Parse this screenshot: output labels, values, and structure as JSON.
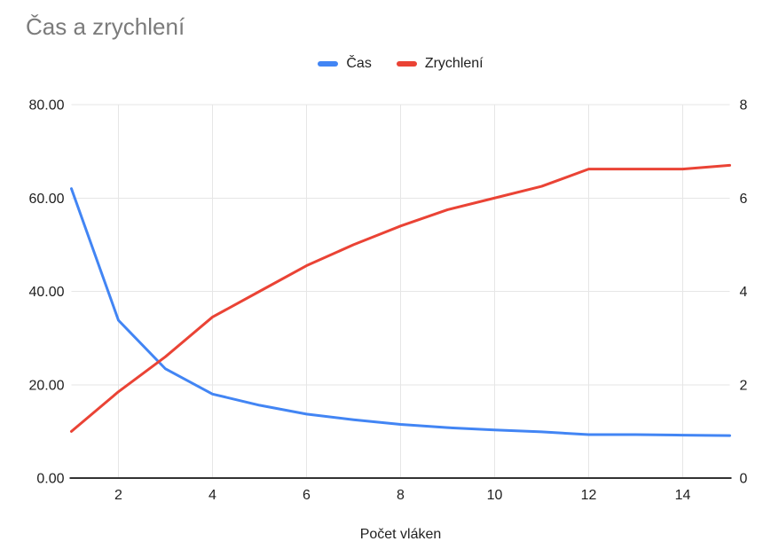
{
  "chart": {
    "title": "Čas a zrychlení",
    "x_axis_title": "Počet vláken"
  },
  "chart_data": {
    "type": "line",
    "title": "Čas a zrychlení",
    "xlabel": "Počet vláken",
    "ylabel_left": "",
    "ylabel_right": "",
    "legend_position": "top",
    "grid": true,
    "x": [
      1,
      2,
      3,
      4,
      5,
      6,
      7,
      8,
      9,
      10,
      11,
      12,
      13,
      14,
      15
    ],
    "series": [
      {
        "name": "Čas",
        "axis": "left",
        "color": "#4285F4",
        "values": [
          62.0,
          33.8,
          23.4,
          18.0,
          15.6,
          13.7,
          12.5,
          11.5,
          10.8,
          10.3,
          9.9,
          9.3,
          9.3,
          9.2,
          9.1
        ]
      },
      {
        "name": "Zrychlení",
        "axis": "right",
        "color": "#EA4335",
        "values": [
          1.0,
          1.85,
          2.6,
          3.45,
          4.0,
          4.55,
          5.0,
          5.4,
          5.75,
          6.0,
          6.25,
          6.62,
          6.62,
          6.62,
          6.7
        ]
      }
    ],
    "left_axis": {
      "min": 0,
      "max": 80,
      "tick_step": 20,
      "tick_labels": [
        "0.00",
        "20.00",
        "40.00",
        "60.00",
        "80.00"
      ]
    },
    "right_axis": {
      "min": 0,
      "max": 8,
      "tick_step": 2,
      "tick_labels": [
        "0",
        "2",
        "4",
        "6",
        "8"
      ]
    },
    "x_axis": {
      "min": 1,
      "max": 15,
      "ticks": [
        2,
        4,
        6,
        8,
        10,
        12,
        14
      ]
    }
  },
  "colors": {
    "series_cas": "#4285F4",
    "series_zrychleni": "#EA4335",
    "gridline": "#e6e6e6",
    "axis_line": "#333333",
    "title_text": "#7b7b7b",
    "tick_text": "#212121"
  }
}
